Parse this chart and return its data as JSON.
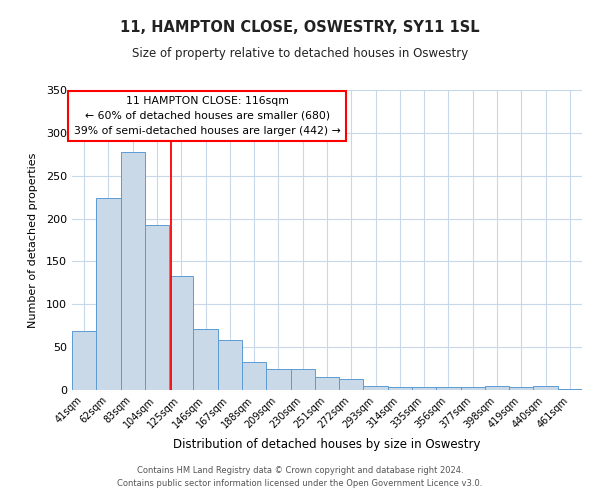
{
  "title": "11, HAMPTON CLOSE, OSWESTRY, SY11 1SL",
  "subtitle": "Size of property relative to detached houses in Oswestry",
  "xlabel": "Distribution of detached houses by size in Oswestry",
  "ylabel": "Number of detached properties",
  "categories": [
    "41sqm",
    "62sqm",
    "83sqm",
    "104sqm",
    "125sqm",
    "146sqm",
    "167sqm",
    "188sqm",
    "209sqm",
    "230sqm",
    "251sqm",
    "272sqm",
    "293sqm",
    "314sqm",
    "335sqm",
    "356sqm",
    "377sqm",
    "398sqm",
    "419sqm",
    "440sqm",
    "461sqm"
  ],
  "values": [
    69,
    224,
    278,
    193,
    133,
    71,
    58,
    33,
    24,
    25,
    15,
    13,
    5,
    3,
    3,
    3,
    3,
    5,
    3,
    5,
    1
  ],
  "bar_color": "#c9d9e8",
  "bar_edge_color": "#5b9bd5",
  "ylim": [
    0,
    350
  ],
  "yticks": [
    0,
    50,
    100,
    150,
    200,
    250,
    300,
    350
  ],
  "property_label": "11 HAMPTON CLOSE: 116sqm",
  "annotation_line1": "← 60% of detached houses are smaller (680)",
  "annotation_line2": "39% of semi-detached houses are larger (442) →",
  "footer_line1": "Contains HM Land Registry data © Crown copyright and database right 2024.",
  "footer_line2": "Contains public sector information licensed under the Open Government Licence v3.0.",
  "background_color": "#ffffff",
  "grid_color": "#c8d8e8"
}
